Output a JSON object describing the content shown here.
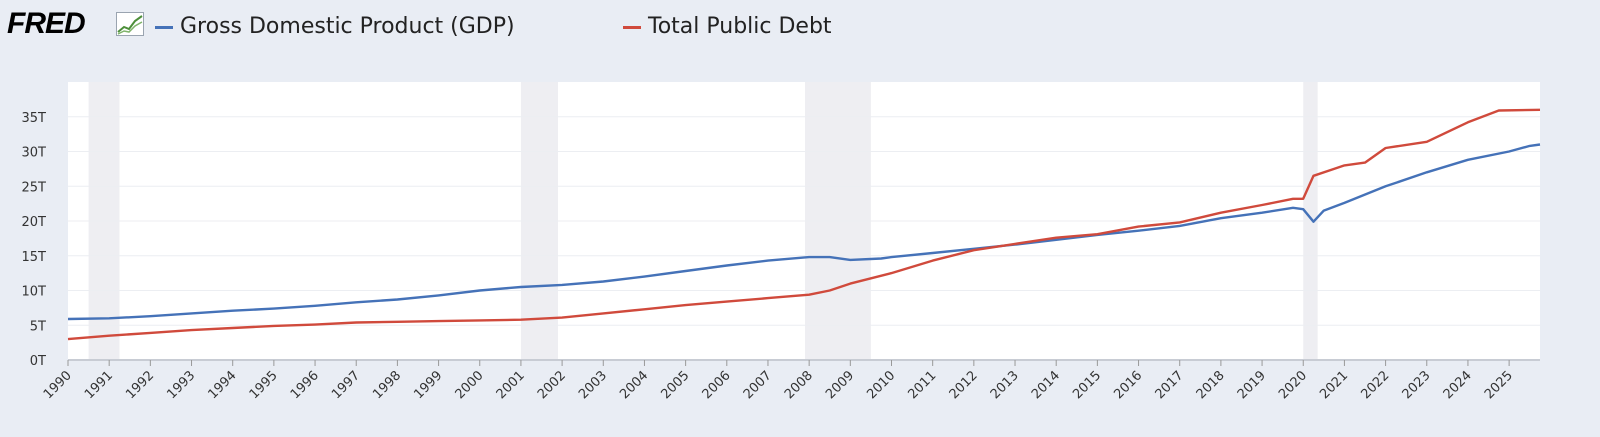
{
  "header": {
    "logo": "FRED",
    "legend": [
      {
        "label": "Gross Domestic Product (GDP)",
        "color": "#4572b8"
      },
      {
        "label": "Total Public Debt",
        "color": "#d04a3c"
      }
    ]
  },
  "chart_data": {
    "type": "line",
    "xlim": [
      1990,
      2025.75
    ],
    "ylim": [
      0,
      40
    ],
    "y_ticks": [
      0,
      5,
      10,
      15,
      20,
      25,
      30,
      35
    ],
    "y_tick_labels": [
      "0T",
      "5T",
      "10T",
      "15T",
      "20T",
      "25T",
      "30T",
      "35T"
    ],
    "x_ticks": [
      1990,
      1991,
      1992,
      1993,
      1994,
      1995,
      1996,
      1997,
      1998,
      1999,
      2000,
      2001,
      2002,
      2003,
      2004,
      2005,
      2006,
      2007,
      2008,
      2009,
      2010,
      2011,
      2012,
      2013,
      2014,
      2015,
      2016,
      2017,
      2018,
      2019,
      2020,
      2021,
      2022,
      2023,
      2024,
      2025
    ],
    "x_tick_labels": [
      "1990",
      "1991",
      "1992",
      "1993",
      "1994",
      "1995",
      "1996",
      "1997",
      "1998",
      "1999",
      "2000",
      "2001",
      "2002",
      "2003",
      "2004",
      "2005",
      "2006",
      "2007",
      "2008",
      "2009",
      "2010",
      "2011",
      "2012",
      "2013",
      "2014",
      "2015",
      "2016",
      "2017",
      "2018",
      "2019",
      "2020",
      "2021",
      "2022",
      "2023",
      "2024",
      "2025"
    ],
    "grid": true,
    "recessions": [
      [
        1990.5,
        1991.25
      ],
      [
        2001.0,
        2001.9
      ],
      [
        2007.9,
        2009.5
      ],
      [
        2020.0,
        2020.35
      ]
    ],
    "units": "trillions of dollars",
    "series": [
      {
        "name": "Gross Domestic Product (GDP)",
        "color": "#4572b8",
        "points": [
          [
            1990,
            5.9
          ],
          [
            1991,
            6.0
          ],
          [
            1992,
            6.3
          ],
          [
            1993,
            6.7
          ],
          [
            1994,
            7.1
          ],
          [
            1995,
            7.4
          ],
          [
            1996,
            7.8
          ],
          [
            1997,
            8.3
          ],
          [
            1998,
            8.7
          ],
          [
            1999,
            9.3
          ],
          [
            2000,
            10.0
          ],
          [
            2001,
            10.5
          ],
          [
            2002,
            10.8
          ],
          [
            2003,
            11.3
          ],
          [
            2004,
            12.0
          ],
          [
            2005,
            12.8
          ],
          [
            2006,
            13.6
          ],
          [
            2007,
            14.3
          ],
          [
            2008,
            14.8
          ],
          [
            2008.5,
            14.8
          ],
          [
            2009,
            14.4
          ],
          [
            2009.75,
            14.6
          ],
          [
            2010,
            14.8
          ],
          [
            2011,
            15.4
          ],
          [
            2012,
            16.0
          ],
          [
            2013,
            16.6
          ],
          [
            2014,
            17.3
          ],
          [
            2015,
            18.0
          ],
          [
            2016,
            18.6
          ],
          [
            2017,
            19.3
          ],
          [
            2018,
            20.4
          ],
          [
            2019,
            21.2
          ],
          [
            2019.75,
            21.9
          ],
          [
            2020,
            21.7
          ],
          [
            2020.25,
            19.9
          ],
          [
            2020.5,
            21.5
          ],
          [
            2021,
            22.6
          ],
          [
            2022,
            25.0
          ],
          [
            2023,
            27.0
          ],
          [
            2024,
            28.8
          ],
          [
            2025,
            30.0
          ],
          [
            2025.5,
            30.8
          ],
          [
            2025.75,
            31.0
          ]
        ]
      },
      {
        "name": "Total Public Debt",
        "color": "#d04a3c",
        "points": [
          [
            1990,
            3.0
          ],
          [
            1991,
            3.5
          ],
          [
            1992,
            3.9
          ],
          [
            1993,
            4.3
          ],
          [
            1994,
            4.6
          ],
          [
            1995,
            4.9
          ],
          [
            1996,
            5.1
          ],
          [
            1997,
            5.4
          ],
          [
            1998,
            5.5
          ],
          [
            1999,
            5.6
          ],
          [
            2000,
            5.7
          ],
          [
            2001,
            5.8
          ],
          [
            2002,
            6.1
          ],
          [
            2003,
            6.7
          ],
          [
            2004,
            7.3
          ],
          [
            2005,
            7.9
          ],
          [
            2006,
            8.4
          ],
          [
            2007,
            8.9
          ],
          [
            2008,
            9.4
          ],
          [
            2008.5,
            10.0
          ],
          [
            2009,
            11.0
          ],
          [
            2010,
            12.5
          ],
          [
            2011,
            14.3
          ],
          [
            2012,
            15.8
          ],
          [
            2013,
            16.7
          ],
          [
            2014,
            17.6
          ],
          [
            2015,
            18.1
          ],
          [
            2016,
            19.2
          ],
          [
            2017,
            19.8
          ],
          [
            2018,
            21.2
          ],
          [
            2019,
            22.3
          ],
          [
            2019.75,
            23.2
          ],
          [
            2020,
            23.2
          ],
          [
            2020.25,
            26.5
          ],
          [
            2020.75,
            27.5
          ],
          [
            2021,
            28.0
          ],
          [
            2021.5,
            28.4
          ],
          [
            2022,
            30.5
          ],
          [
            2023,
            31.4
          ],
          [
            2024,
            34.2
          ],
          [
            2024.75,
            35.9
          ],
          [
            2025.75,
            36.0
          ]
        ]
      }
    ]
  }
}
